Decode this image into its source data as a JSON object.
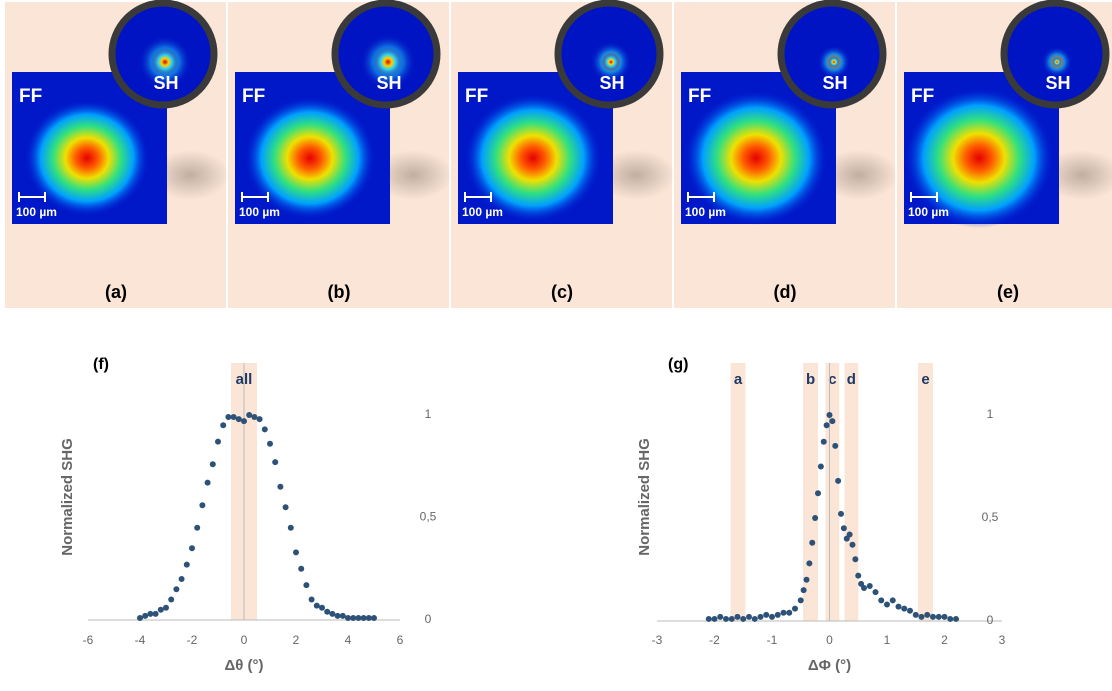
{
  "panels": [
    {
      "label": "(a)",
      "ff": "FF",
      "sh": "SH",
      "scale": "100 µm"
    },
    {
      "label": "(b)",
      "ff": "FF",
      "sh": "SH",
      "scale": "100 µm"
    },
    {
      "label": "(c)",
      "ff": "FF",
      "sh": "SH",
      "scale": "100 µm"
    },
    {
      "label": "(d)",
      "ff": "FF",
      "sh": "SH",
      "scale": "100 µm"
    },
    {
      "label": "(e)",
      "ff": "FF",
      "sh": "SH",
      "scale": "100 µm"
    }
  ],
  "chart_data": [
    {
      "type": "scatter",
      "title": "(f)",
      "x_label": "Δθ (°)",
      "y_label": "Normalized SHG",
      "color": "#2e5277",
      "xlim": [
        -6,
        6
      ],
      "xticks": [
        -6,
        -4,
        -2,
        0,
        2,
        4,
        6
      ],
      "ylim": [
        0,
        1
      ],
      "yticks": [
        0,
        {
          "value": 0.5,
          "label": "0,5"
        },
        1
      ],
      "vline": 0,
      "bands": [
        {
          "label": "all",
          "x0": -0.5,
          "x1": 0.5
        }
      ],
      "x": [
        -4.0,
        -3.8,
        -3.6,
        -3.4,
        -3.2,
        -3.0,
        -2.8,
        -2.6,
        -2.4,
        -2.2,
        -2.0,
        -1.8,
        -1.6,
        -1.4,
        -1.2,
        -1.0,
        -0.8,
        -0.6,
        -0.4,
        -0.2,
        0.0,
        0.2,
        0.4,
        0.6,
        0.8,
        1.0,
        1.2,
        1.4,
        1.6,
        1.8,
        2.0,
        2.2,
        2.4,
        2.6,
        2.8,
        3.0,
        3.2,
        3.4,
        3.6,
        3.8,
        4.0,
        4.2,
        4.4,
        4.6,
        4.8,
        5.0
      ],
      "values": [
        0.01,
        0.02,
        0.03,
        0.03,
        0.05,
        0.06,
        0.1,
        0.15,
        0.2,
        0.27,
        0.35,
        0.45,
        0.56,
        0.67,
        0.76,
        0.87,
        0.95,
        0.99,
        0.99,
        0.98,
        0.97,
        1.0,
        0.99,
        0.98,
        0.93,
        0.86,
        0.77,
        0.65,
        0.55,
        0.45,
        0.33,
        0.25,
        0.17,
        0.1,
        0.07,
        0.06,
        0.04,
        0.03,
        0.02,
        0.02,
        0.01,
        0.01,
        0.01,
        0.01,
        0.01,
        0.01
      ]
    },
    {
      "type": "scatter",
      "title": "(g)",
      "x_label": "ΔΦ (°)",
      "y_label": "Normalized SHG",
      "color": "#2e5277",
      "xlim": [
        -3,
        3
      ],
      "xticks": [
        -3,
        -2,
        -1,
        0,
        1,
        2,
        3
      ],
      "ylim": [
        0,
        1
      ],
      "yticks": [
        0,
        {
          "value": 0.5,
          "label": "0,5"
        },
        1
      ],
      "vline": 0,
      "bands": [
        {
          "label": "a",
          "x0": -1.72,
          "x1": -1.46
        },
        {
          "label": "b",
          "x0": -0.46,
          "x1": -0.2
        },
        {
          "label": "c",
          "x0": -0.07,
          "x1": 0.17
        },
        {
          "label": "d",
          "x0": 0.26,
          "x1": 0.5
        },
        {
          "label": "e",
          "x0": 1.54,
          "x1": 1.8
        }
      ],
      "x": [
        -2.1,
        -2.0,
        -1.9,
        -1.8,
        -1.7,
        -1.6,
        -1.5,
        -1.4,
        -1.3,
        -1.2,
        -1.1,
        -1.0,
        -0.9,
        -0.8,
        -0.7,
        -0.6,
        -0.5,
        -0.45,
        -0.4,
        -0.35,
        -0.3,
        -0.25,
        -0.2,
        -0.15,
        -0.1,
        -0.05,
        0.0,
        0.05,
        0.1,
        0.15,
        0.2,
        0.25,
        0.3,
        0.35,
        0.4,
        0.45,
        0.5,
        0.55,
        0.6,
        0.7,
        0.8,
        0.9,
        1.0,
        1.1,
        1.2,
        1.3,
        1.4,
        1.5,
        1.6,
        1.7,
        1.8,
        1.9,
        2.0,
        2.1,
        2.2
      ],
      "values": [
        0.01,
        0.01,
        0.02,
        0.01,
        0.01,
        0.02,
        0.01,
        0.02,
        0.01,
        0.02,
        0.03,
        0.02,
        0.03,
        0.04,
        0.04,
        0.06,
        0.1,
        0.15,
        0.2,
        0.28,
        0.38,
        0.5,
        0.62,
        0.75,
        0.87,
        0.95,
        1.0,
        0.97,
        0.85,
        0.68,
        0.52,
        0.45,
        0.4,
        0.42,
        0.37,
        0.3,
        0.22,
        0.18,
        0.16,
        0.17,
        0.14,
        0.1,
        0.08,
        0.1,
        0.07,
        0.06,
        0.05,
        0.03,
        0.02,
        0.03,
        0.02,
        0.02,
        0.02,
        0.01,
        0.01
      ]
    }
  ]
}
